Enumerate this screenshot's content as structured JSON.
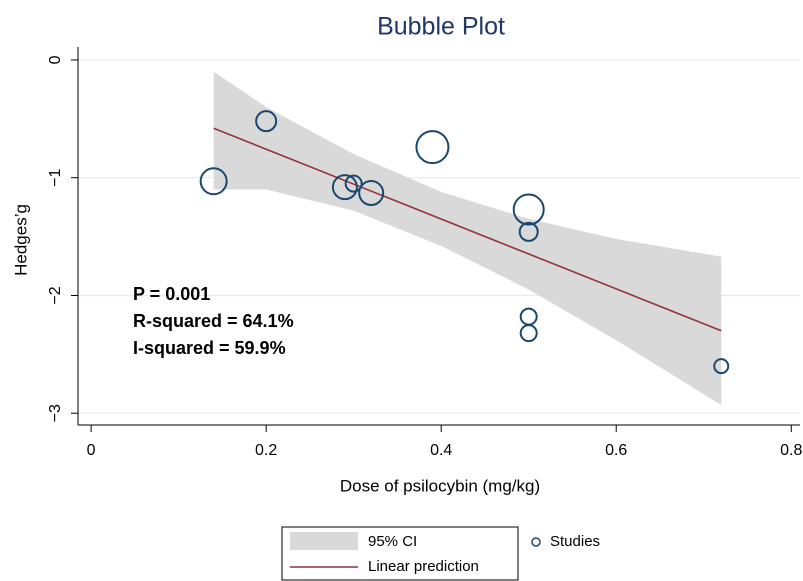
{
  "chart_data": {
    "type": "scatter",
    "title": "Bubble Plot",
    "x_label": "Dose of psilocybin (mg/kg)",
    "y_label": "Hedges’g",
    "xlim": [
      -0.015,
      0.81
    ],
    "ylim": [
      -3.1,
      0.11
    ],
    "xticks": [
      0,
      0.2,
      0.4,
      0.6,
      0.8
    ],
    "yticks": [
      0,
      {
        "value": -1,
        "label": "−1"
      },
      {
        "value": -2,
        "label": "−2"
      },
      {
        "value": -3,
        "label": "−3"
      }
    ],
    "grid": true,
    "series": [
      {
        "name": "Studies",
        "color": "#1a476f",
        "x": [
          0.14,
          0.2,
          0.29,
          0.3,
          0.32,
          0.39,
          0.5,
          0.5,
          0.5,
          0.5,
          0.72
        ],
        "values": [
          -1.03,
          -0.52,
          -1.08,
          -1.05,
          -1.13,
          -0.74,
          -1.27,
          -1.46,
          -2.18,
          -2.32,
          -2.6
        ],
        "sizes": [
          169,
          100,
          144,
          64,
          144,
          256,
          225,
          81,
          64,
          64,
          49
        ]
      }
    ],
    "fit": {
      "name": "Linear prediction",
      "color": "#90353b",
      "x": [
        0.14,
        0.72
      ],
      "values": [
        -0.58,
        -2.3
      ]
    },
    "ci": {
      "name": "95% CI",
      "color": "#d9d9d9",
      "x": [
        0.14,
        0.2,
        0.3,
        0.4,
        0.5,
        0.6,
        0.72
      ],
      "upper": [
        -0.1,
        -0.4,
        -0.8,
        -1.12,
        -1.35,
        -1.52,
        -1.67
      ],
      "lower": [
        -1.1,
        -1.1,
        -1.28,
        -1.58,
        -1.95,
        -2.38,
        -2.93
      ]
    },
    "annotations": [
      "P = 0.001",
      "R-squared = 64.1%",
      "I-squared = 59.9%"
    ]
  }
}
